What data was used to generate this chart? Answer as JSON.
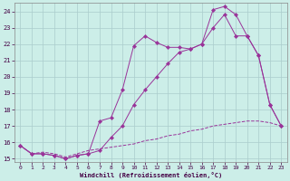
{
  "xlabel": "Windchill (Refroidissement éolien,°C)",
  "bg_color": "#cceee8",
  "grid_color": "#aacccc",
  "line_color": "#993399",
  "xmin": 0,
  "xmax": 23,
  "ymin": 15,
  "ymax": 24,
  "yticks": [
    15,
    16,
    17,
    18,
    19,
    20,
    21,
    22,
    23,
    24
  ],
  "xticks": [
    0,
    1,
    2,
    3,
    4,
    5,
    6,
    7,
    8,
    9,
    10,
    11,
    12,
    13,
    14,
    15,
    16,
    17,
    18,
    19,
    20,
    21,
    22,
    23
  ],
  "line1_x": [
    0,
    1,
    2,
    3,
    4,
    5,
    6,
    7,
    8,
    9,
    10,
    11,
    12,
    13,
    14,
    15,
    16,
    17,
    18,
    19,
    20,
    21,
    22,
    23
  ],
  "line1_y": [
    15.8,
    15.3,
    15.3,
    15.2,
    15.0,
    15.2,
    15.3,
    17.3,
    17.5,
    19.2,
    21.9,
    22.5,
    22.1,
    21.8,
    21.8,
    21.7,
    22.0,
    24.1,
    24.3,
    23.8,
    22.5,
    21.3,
    18.3,
    17.0
  ],
  "line2_x": [
    0,
    1,
    2,
    3,
    4,
    5,
    6,
    7,
    8,
    9,
    10,
    11,
    12,
    13,
    14,
    15,
    16,
    17,
    18,
    19,
    20,
    21,
    22,
    23
  ],
  "line2_y": [
    15.8,
    15.3,
    15.3,
    15.2,
    15.0,
    15.2,
    15.3,
    15.5,
    16.3,
    17.0,
    18.3,
    19.2,
    20.0,
    20.8,
    21.5,
    21.7,
    22.0,
    23.0,
    23.8,
    22.5,
    22.5,
    21.3,
    18.3,
    17.0
  ],
  "line3_x": [
    0,
    1,
    2,
    3,
    4,
    5,
    6,
    7,
    8,
    9,
    10,
    11,
    12,
    13,
    14,
    15,
    16,
    17,
    18,
    19,
    20,
    21,
    22,
    23
  ],
  "line3_y": [
    15.8,
    15.3,
    15.4,
    15.3,
    15.1,
    15.3,
    15.5,
    15.6,
    15.7,
    15.8,
    15.9,
    16.1,
    16.2,
    16.4,
    16.5,
    16.7,
    16.8,
    17.0,
    17.1,
    17.2,
    17.3,
    17.3,
    17.2,
    17.0
  ]
}
